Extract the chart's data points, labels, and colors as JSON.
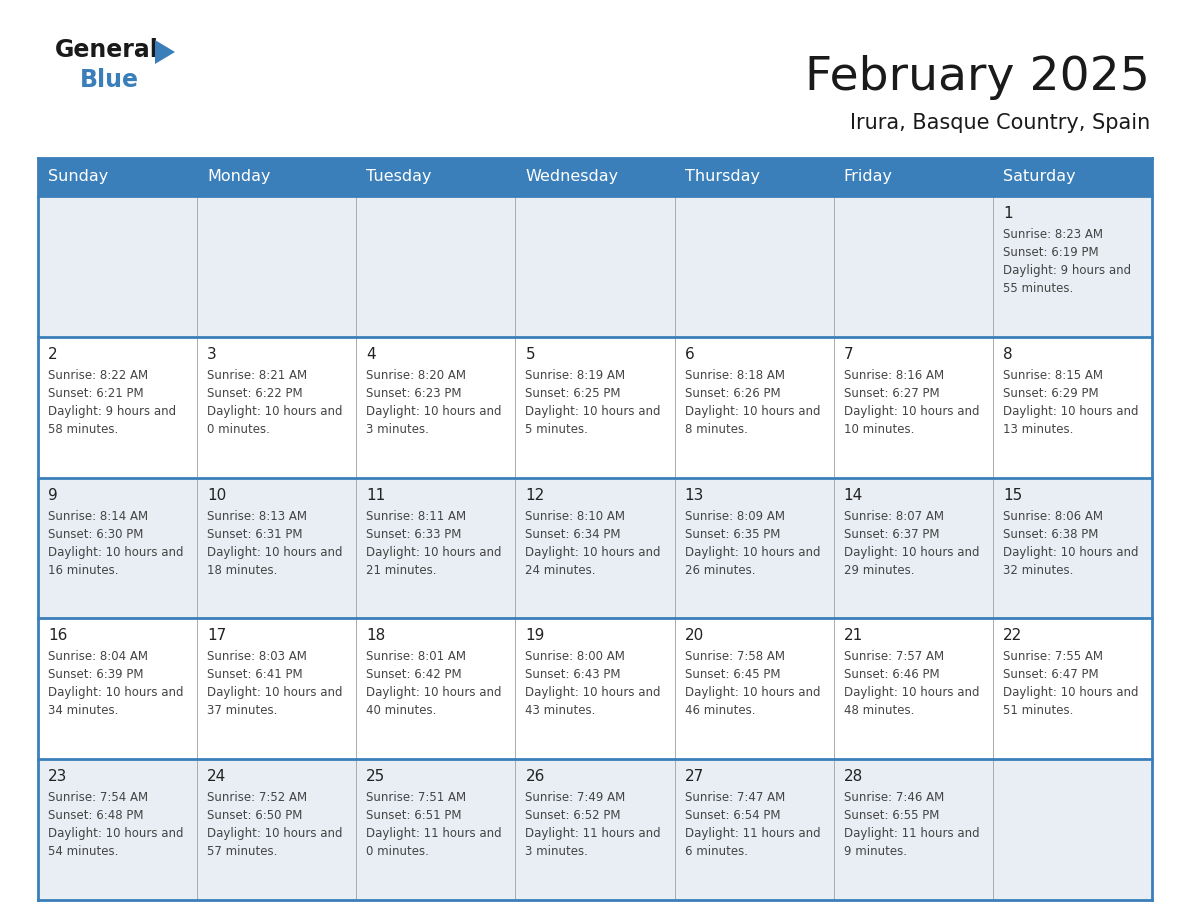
{
  "title": "February 2025",
  "subtitle": "Irura, Basque Country, Spain",
  "header_bg_color": "#3a7fba",
  "header_text_color": "#ffffff",
  "row_bg_odd": "#e8eef4",
  "row_bg_even": "#ffffff",
  "day_headers": [
    "Sunday",
    "Monday",
    "Tuesday",
    "Wednesday",
    "Thursday",
    "Friday",
    "Saturday"
  ],
  "title_color": "#1a1a1a",
  "subtitle_color": "#1a1a1a",
  "text_color": "#444444",
  "day_num_color": "#222222",
  "line_color": "#3a7fba",
  "logo_general_color": "#1a1a1a",
  "logo_blue_color": "#3a7fba",
  "logo_triangle_color": "#3a7fba",
  "days": [
    {
      "day": 1,
      "col": 6,
      "row": 0,
      "sunrise": "8:23 AM",
      "sunset": "6:19 PM",
      "daylight": "9 hours and 55 minutes."
    },
    {
      "day": 2,
      "col": 0,
      "row": 1,
      "sunrise": "8:22 AM",
      "sunset": "6:21 PM",
      "daylight": "9 hours and 58 minutes."
    },
    {
      "day": 3,
      "col": 1,
      "row": 1,
      "sunrise": "8:21 AM",
      "sunset": "6:22 PM",
      "daylight": "10 hours and 0 minutes."
    },
    {
      "day": 4,
      "col": 2,
      "row": 1,
      "sunrise": "8:20 AM",
      "sunset": "6:23 PM",
      "daylight": "10 hours and 3 minutes."
    },
    {
      "day": 5,
      "col": 3,
      "row": 1,
      "sunrise": "8:19 AM",
      "sunset": "6:25 PM",
      "daylight": "10 hours and 5 minutes."
    },
    {
      "day": 6,
      "col": 4,
      "row": 1,
      "sunrise": "8:18 AM",
      "sunset": "6:26 PM",
      "daylight": "10 hours and 8 minutes."
    },
    {
      "day": 7,
      "col": 5,
      "row": 1,
      "sunrise": "8:16 AM",
      "sunset": "6:27 PM",
      "daylight": "10 hours and 10 minutes."
    },
    {
      "day": 8,
      "col": 6,
      "row": 1,
      "sunrise": "8:15 AM",
      "sunset": "6:29 PM",
      "daylight": "10 hours and 13 minutes."
    },
    {
      "day": 9,
      "col": 0,
      "row": 2,
      "sunrise": "8:14 AM",
      "sunset": "6:30 PM",
      "daylight": "10 hours and 16 minutes."
    },
    {
      "day": 10,
      "col": 1,
      "row": 2,
      "sunrise": "8:13 AM",
      "sunset": "6:31 PM",
      "daylight": "10 hours and 18 minutes."
    },
    {
      "day": 11,
      "col": 2,
      "row": 2,
      "sunrise": "8:11 AM",
      "sunset": "6:33 PM",
      "daylight": "10 hours and 21 minutes."
    },
    {
      "day": 12,
      "col": 3,
      "row": 2,
      "sunrise": "8:10 AM",
      "sunset": "6:34 PM",
      "daylight": "10 hours and 24 minutes."
    },
    {
      "day": 13,
      "col": 4,
      "row": 2,
      "sunrise": "8:09 AM",
      "sunset": "6:35 PM",
      "daylight": "10 hours and 26 minutes."
    },
    {
      "day": 14,
      "col": 5,
      "row": 2,
      "sunrise": "8:07 AM",
      "sunset": "6:37 PM",
      "daylight": "10 hours and 29 minutes."
    },
    {
      "day": 15,
      "col": 6,
      "row": 2,
      "sunrise": "8:06 AM",
      "sunset": "6:38 PM",
      "daylight": "10 hours and 32 minutes."
    },
    {
      "day": 16,
      "col": 0,
      "row": 3,
      "sunrise": "8:04 AM",
      "sunset": "6:39 PM",
      "daylight": "10 hours and 34 minutes."
    },
    {
      "day": 17,
      "col": 1,
      "row": 3,
      "sunrise": "8:03 AM",
      "sunset": "6:41 PM",
      "daylight": "10 hours and 37 minutes."
    },
    {
      "day": 18,
      "col": 2,
      "row": 3,
      "sunrise": "8:01 AM",
      "sunset": "6:42 PM",
      "daylight": "10 hours and 40 minutes."
    },
    {
      "day": 19,
      "col": 3,
      "row": 3,
      "sunrise": "8:00 AM",
      "sunset": "6:43 PM",
      "daylight": "10 hours and 43 minutes."
    },
    {
      "day": 20,
      "col": 4,
      "row": 3,
      "sunrise": "7:58 AM",
      "sunset": "6:45 PM",
      "daylight": "10 hours and 46 minutes."
    },
    {
      "day": 21,
      "col": 5,
      "row": 3,
      "sunrise": "7:57 AM",
      "sunset": "6:46 PM",
      "daylight": "10 hours and 48 minutes."
    },
    {
      "day": 22,
      "col": 6,
      "row": 3,
      "sunrise": "7:55 AM",
      "sunset": "6:47 PM",
      "daylight": "10 hours and 51 minutes."
    },
    {
      "day": 23,
      "col": 0,
      "row": 4,
      "sunrise": "7:54 AM",
      "sunset": "6:48 PM",
      "daylight": "10 hours and 54 minutes."
    },
    {
      "day": 24,
      "col": 1,
      "row": 4,
      "sunrise": "7:52 AM",
      "sunset": "6:50 PM",
      "daylight": "10 hours and 57 minutes."
    },
    {
      "day": 25,
      "col": 2,
      "row": 4,
      "sunrise": "7:51 AM",
      "sunset": "6:51 PM",
      "daylight": "11 hours and 0 minutes."
    },
    {
      "day": 26,
      "col": 3,
      "row": 4,
      "sunrise": "7:49 AM",
      "sunset": "6:52 PM",
      "daylight": "11 hours and 3 minutes."
    },
    {
      "day": 27,
      "col": 4,
      "row": 4,
      "sunrise": "7:47 AM",
      "sunset": "6:54 PM",
      "daylight": "11 hours and 6 minutes."
    },
    {
      "day": 28,
      "col": 5,
      "row": 4,
      "sunrise": "7:46 AM",
      "sunset": "6:55 PM",
      "daylight": "11 hours and 9 minutes."
    }
  ]
}
